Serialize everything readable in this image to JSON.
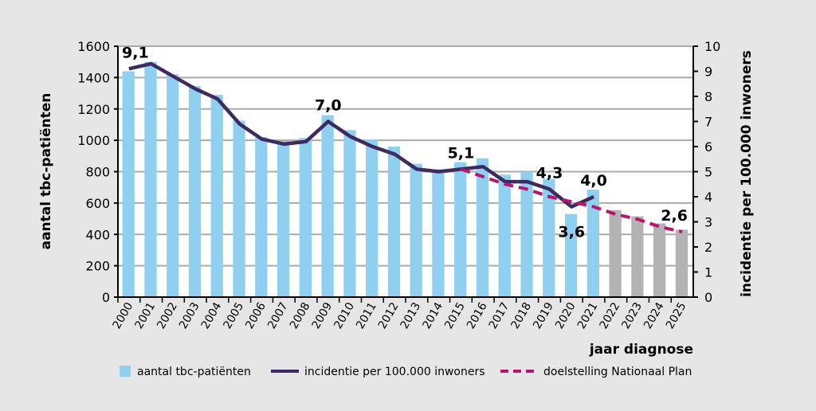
{
  "chart_data": {
    "type": "bar+line",
    "categories": [
      "2000",
      "2001",
      "2002",
      "2003",
      "2004",
      "2005",
      "2006",
      "2007",
      "2008",
      "2009",
      "2010",
      "2011",
      "2012",
      "2013",
      "2014",
      "2015",
      "2016",
      "2017",
      "2018",
      "2019",
      "2020",
      "2021",
      "2022",
      "2023",
      "2024",
      "2025"
    ],
    "bars": {
      "name": "aantal tbc-patiënten",
      "color": "#8fd0f0",
      "projected_color": "#b3b3b3",
      "projected_from": "2022",
      "values": [
        1440,
        1500,
        1420,
        1345,
        1290,
        1125,
        1020,
        995,
        1015,
        1160,
        1065,
        1005,
        960,
        850,
        815,
        860,
        885,
        780,
        800,
        755,
        530,
        685,
        555,
        515,
        470,
        430
      ]
    },
    "series": [
      {
        "name": "incidentie per 100.000 inwoners",
        "color": "#3d2a5e",
        "style": "solid",
        "x": [
          "2000",
          "2001",
          "2002",
          "2003",
          "2004",
          "2005",
          "2006",
          "2007",
          "2008",
          "2009",
          "2010",
          "2011",
          "2012",
          "2013",
          "2014",
          "2015",
          "2016",
          "2017",
          "2018",
          "2019",
          "2020",
          "2021"
        ],
        "values": [
          9.1,
          9.3,
          8.8,
          8.3,
          7.9,
          6.9,
          6.3,
          6.1,
          6.2,
          7.0,
          6.4,
          6.0,
          5.7,
          5.1,
          5.0,
          5.1,
          5.2,
          4.6,
          4.6,
          4.3,
          3.6,
          4.0
        ]
      },
      {
        "name": "doelstelling Nationaal Plan",
        "color": "#b5176e",
        "style": "dashed",
        "x": [
          "2015",
          "2016",
          "2017",
          "2018",
          "2019",
          "2020",
          "2021",
          "2022",
          "2023",
          "2024",
          "2025"
        ],
        "values": [
          5.1,
          4.8,
          4.5,
          4.3,
          4.0,
          3.8,
          3.6,
          3.3,
          3.1,
          2.8,
          2.6
        ]
      }
    ],
    "annotations": [
      {
        "x": "2000",
        "label": "9,1"
      },
      {
        "x": "2009",
        "label": "7,0"
      },
      {
        "x": "2015",
        "label": "5,1"
      },
      {
        "x": "2019",
        "label": "4,3"
      },
      {
        "x": "2020",
        "label": "3,6"
      },
      {
        "x": "2021",
        "label": "4,0"
      },
      {
        "x": "2025",
        "label": "2,6"
      }
    ],
    "ylabel": "aantal tbc-patiënten",
    "y2label": "incidentie per 100.000 inwoners",
    "xlabel": "jaar diagnose",
    "ylim": [
      0,
      1600
    ],
    "y2lim": [
      0,
      10
    ],
    "yticks": [
      "0",
      "200",
      "400",
      "600",
      "800",
      "1000",
      "1200",
      "1400",
      "1600"
    ],
    "y2ticks": [
      "0",
      "1",
      "2",
      "3",
      "4",
      "5",
      "6",
      "7",
      "8",
      "9",
      "10"
    ],
    "grid": true,
    "legend": "bottom"
  }
}
